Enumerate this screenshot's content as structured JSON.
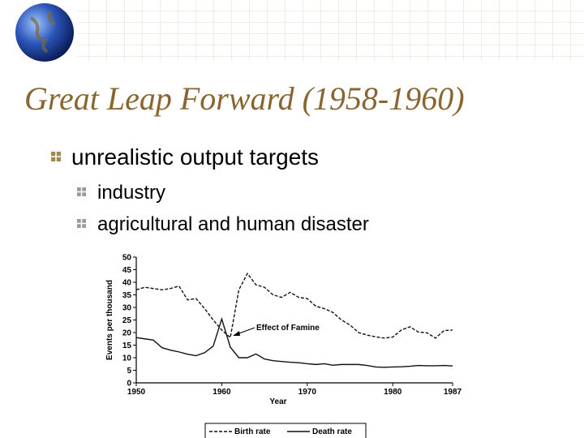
{
  "title": "Great Leap Forward (1958-1960)",
  "bullets": [
    {
      "text": "unrealistic output targets",
      "children": [
        "industry",
        "agricultural and human disaster"
      ]
    }
  ],
  "chart_data": {
    "type": "line",
    "x_label": "Year",
    "y_label": "Events per thousand",
    "annotation": "Effect of Famine",
    "x": [
      1950,
      1951,
      1952,
      1953,
      1954,
      1955,
      1956,
      1957,
      1958,
      1959,
      1960,
      1961,
      1962,
      1963,
      1964,
      1965,
      1966,
      1967,
      1968,
      1969,
      1970,
      1971,
      1972,
      1973,
      1974,
      1975,
      1976,
      1977,
      1978,
      1979,
      1980,
      1981,
      1982,
      1983,
      1984,
      1985,
      1986,
      1987
    ],
    "xlim": [
      1950,
      1987
    ],
    "xticks": [
      1950,
      1960,
      1970,
      1980,
      1987
    ],
    "ylim": [
      0,
      50
    ],
    "yticks": [
      0,
      5,
      10,
      15,
      20,
      25,
      30,
      35,
      40,
      45,
      50
    ],
    "series": [
      {
        "name": "Birth rate",
        "color": "#111111",
        "dash": true,
        "values": [
          37,
          38,
          37.5,
          37,
          37.5,
          38.5,
          33,
          33.5,
          29.5,
          25,
          21,
          18,
          37,
          43.5,
          39,
          38,
          35,
          34,
          36,
          34,
          33.5,
          30.5,
          29.5,
          28,
          25,
          23,
          20,
          19,
          18.3,
          17.8,
          18.2,
          21,
          22.3,
          20.2,
          19.9,
          17.8,
          20.8,
          21
        ]
      },
      {
        "name": "Death rate",
        "color": "#111111",
        "dash": false,
        "values": [
          18,
          17.5,
          17,
          14,
          13,
          12.3,
          11.4,
          10.8,
          12,
          14.6,
          25.4,
          14.2,
          10,
          10,
          11.5,
          9.5,
          8.8,
          8.5,
          8.2,
          8,
          7.6,
          7.3,
          7.6,
          7,
          7.3,
          7.3,
          7.3,
          6.9,
          6.3,
          6.2,
          6.3,
          6.4,
          6.6,
          6.9,
          6.8,
          6.8,
          6.9,
          6.7
        ]
      }
    ]
  }
}
